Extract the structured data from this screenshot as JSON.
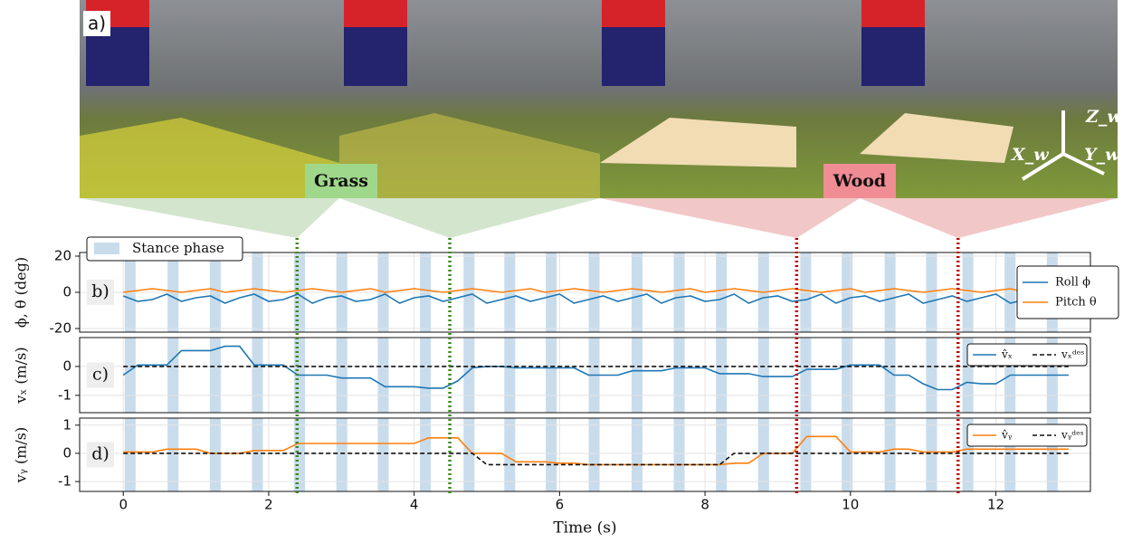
{
  "figure": {
    "panel_label": "a)",
    "grass": "Grass",
    "wood": "Wood",
    "axes": [
      "Z_w",
      "X_w",
      "Y_w"
    ]
  },
  "stance": {
    "name": "Stance phase",
    "color": "#c9dcec",
    "intervals": [
      [
        0.02,
        0.17
      ],
      [
        0.61,
        0.76
      ],
      [
        1.19,
        1.34
      ],
      [
        1.77,
        1.92
      ],
      [
        2.35,
        2.5
      ],
      [
        2.93,
        3.08
      ],
      [
        3.5,
        3.65
      ],
      [
        4.08,
        4.23
      ],
      [
        4.68,
        4.83
      ],
      [
        5.24,
        5.39
      ],
      [
        5.81,
        5.96
      ],
      [
        6.4,
        6.55
      ],
      [
        6.99,
        7.14
      ],
      [
        7.57,
        7.72
      ],
      [
        8.15,
        8.3
      ],
      [
        8.73,
        8.88
      ],
      [
        9.31,
        9.46
      ],
      [
        9.88,
        10.03
      ],
      [
        10.47,
        10.62
      ],
      [
        11.04,
        11.19
      ],
      [
        11.54,
        11.69
      ],
      [
        12.12,
        12.27
      ],
      [
        12.7,
        12.85
      ]
    ]
  },
  "events": [
    {
      "x": 2.39,
      "color": "#3a8a1e"
    },
    {
      "x": 4.49,
      "color": "#3a8a1e"
    },
    {
      "x": 9.26,
      "color": "#c00000"
    },
    {
      "x": 11.48,
      "color": "#c00000"
    }
  ],
  "chart_data": [
    {
      "type": "line",
      "annotation": "b)",
      "ylabel": "ϕ, θ (deg)",
      "xlim": [
        -0.6,
        13.3
      ],
      "ylim": [
        -22,
        22
      ],
      "yticks": [
        -20,
        0,
        20
      ],
      "grid": true,
      "legend": "center right",
      "x": [
        0,
        0.2,
        0.4,
        0.6,
        0.8,
        1,
        1.2,
        1.4,
        1.6,
        1.8,
        2,
        2.2,
        2.4,
        2.6,
        2.8,
        3,
        3.2,
        3.4,
        3.6,
        3.8,
        4,
        4.2,
        4.4,
        4.6,
        4.8,
        5,
        5.2,
        5.4,
        5.6,
        5.8,
        6,
        6.2,
        6.4,
        6.6,
        6.8,
        7,
        7.2,
        7.4,
        7.6,
        7.8,
        8,
        8.2,
        8.4,
        8.6,
        8.8,
        9,
        9.2,
        9.4,
        9.6,
        9.8,
        10,
        10.2,
        10.4,
        10.6,
        10.8,
        11,
        11.2,
        11.4,
        11.6,
        11.8,
        12,
        12.2,
        12.4,
        12.6,
        12.8,
        13
      ],
      "series": [
        {
          "name": "Roll ϕ",
          "color": "#1f77b4",
          "values": [
            -2,
            -5,
            -4,
            -1,
            -5,
            -3,
            -2,
            -6,
            -3,
            -1,
            -5,
            -4,
            -1,
            -6,
            -3,
            -2,
            -5,
            -4,
            -1,
            -6,
            -3,
            -2,
            -5,
            -3,
            -1,
            -6,
            -4,
            -2,
            -5,
            -3,
            -1,
            -6,
            -4,
            -2,
            -5,
            -3,
            -1,
            -6,
            -3,
            -2,
            -5,
            -4,
            -1,
            -6,
            -3,
            -2,
            -5,
            -4,
            -1,
            -6,
            -3,
            -2,
            -5,
            -3,
            -1,
            -6,
            -4,
            -2,
            -5,
            -3,
            -1,
            -6,
            -4,
            -2,
            -5,
            -3
          ]
        },
        {
          "name": "Pitch θ",
          "color": "#ff7f0e",
          "values": [
            0,
            1,
            2,
            1,
            0,
            1,
            2,
            0,
            1,
            2,
            1,
            0,
            1,
            2,
            1,
            0,
            1,
            2,
            0,
            1,
            2,
            1,
            0,
            1,
            2,
            1,
            0,
            1,
            2,
            0,
            1,
            2,
            1,
            0,
            1,
            2,
            1,
            0,
            1,
            2,
            0,
            1,
            2,
            1,
            0,
            1,
            2,
            1,
            0,
            1,
            2,
            0,
            1,
            2,
            1,
            0,
            1,
            2,
            1,
            0,
            1,
            2,
            0,
            1,
            2,
            1
          ]
        }
      ]
    },
    {
      "type": "line",
      "annotation": "c)",
      "ylabel": "vₓ (m/s)",
      "xlim": [
        -0.6,
        13.3
      ],
      "ylim": [
        -1.6,
        1.0
      ],
      "yticks": [
        -1,
        0
      ],
      "grid": true,
      "legend": "upper right",
      "x": [
        0,
        0.2,
        0.4,
        0.6,
        0.8,
        1,
        1.2,
        1.4,
        1.6,
        1.8,
        2,
        2.2,
        2.4,
        2.6,
        2.8,
        3,
        3.2,
        3.4,
        3.6,
        3.8,
        4,
        4.2,
        4.4,
        4.6,
        4.8,
        5,
        5.2,
        5.4,
        5.6,
        5.8,
        6,
        6.2,
        6.4,
        6.6,
        6.8,
        7,
        7.2,
        7.4,
        7.6,
        7.8,
        8,
        8.2,
        8.4,
        8.6,
        8.8,
        9,
        9.2,
        9.4,
        9.6,
        9.8,
        10,
        10.2,
        10.4,
        10.6,
        10.8,
        11,
        11.2,
        11.4,
        11.6,
        11.8,
        12,
        12.2,
        12.4,
        12.6,
        12.8,
        13
      ],
      "series": [
        {
          "name": "v̂ₓ",
          "color": "#1f77b4",
          "values": [
            -0.3,
            0.05,
            0.05,
            0.05,
            0.55,
            0.55,
            0.55,
            0.7,
            0.7,
            0.05,
            0.05,
            0.05,
            -0.3,
            -0.3,
            -0.3,
            -0.4,
            -0.4,
            -0.4,
            -0.7,
            -0.7,
            -0.7,
            -0.75,
            -0.75,
            -0.5,
            -0.05,
            0,
            0,
            -0.05,
            -0.05,
            -0.05,
            -0.05,
            -0.05,
            -0.3,
            -0.3,
            -0.3,
            -0.15,
            -0.15,
            -0.15,
            -0.05,
            -0.05,
            -0.05,
            -0.25,
            -0.25,
            -0.25,
            -0.35,
            -0.35,
            -0.35,
            -0.1,
            -0.1,
            -0.1,
            0.05,
            0.05,
            0.05,
            -0.3,
            -0.3,
            -0.6,
            -0.8,
            -0.8,
            -0.55,
            -0.6,
            -0.6,
            -0.3,
            -0.3,
            -0.3,
            -0.3,
            -0.3
          ]
        },
        {
          "name": "vₓᵈᵉˢ",
          "color": "#111111",
          "dash": true,
          "values": [
            0,
            0,
            0,
            0,
            0,
            0,
            0,
            0,
            0,
            0,
            0,
            0,
            0,
            0,
            0,
            0,
            0,
            0,
            0,
            0,
            0,
            0,
            0,
            0,
            0,
            0,
            0,
            0,
            0,
            0,
            0,
            0,
            0,
            0,
            0,
            0,
            0,
            0,
            0,
            0,
            0,
            0,
            0,
            0,
            0,
            0,
            0,
            0,
            0,
            0,
            0,
            0,
            0,
            0,
            0,
            0,
            0,
            0,
            0,
            0,
            0,
            0,
            0,
            0,
            0,
            0
          ]
        }
      ]
    },
    {
      "type": "line",
      "annotation": "d)",
      "ylabel": "vᵧ (m/s)",
      "xlabel": "Time (s)",
      "xlim": [
        -0.6,
        13.3
      ],
      "ylim": [
        -1.35,
        1.25
      ],
      "yticks": [
        -1,
        0,
        1
      ],
      "xticks": [
        0,
        2,
        4,
        6,
        8,
        10,
        12
      ],
      "grid": true,
      "legend": "upper right",
      "x": [
        0,
        0.2,
        0.4,
        0.6,
        0.8,
        1,
        1.2,
        1.4,
        1.6,
        1.8,
        2,
        2.2,
        2.4,
        2.6,
        2.8,
        3,
        3.2,
        3.4,
        3.6,
        3.8,
        4,
        4.2,
        4.4,
        4.6,
        4.8,
        5,
        5.2,
        5.4,
        5.6,
        5.8,
        6,
        6.2,
        6.4,
        6.6,
        6.8,
        7,
        7.2,
        7.4,
        7.6,
        7.8,
        8,
        8.2,
        8.4,
        8.6,
        8.8,
        9,
        9.2,
        9.4,
        9.6,
        9.8,
        10,
        10.2,
        10.4,
        10.6,
        10.8,
        11,
        11.2,
        11.4,
        11.6,
        11.8,
        12,
        12.2,
        12.4,
        12.6,
        12.8,
        13
      ],
      "series": [
        {
          "name": "v̂ᵧ",
          "color": "#ff7f0e",
          "values": [
            0.05,
            0.05,
            0.05,
            0.15,
            0.15,
            0.15,
            0,
            0,
            0,
            0.1,
            0.1,
            0.1,
            0.35,
            0.35,
            0.35,
            0.35,
            0.35,
            0.35,
            0.35,
            0.35,
            0.35,
            0.55,
            0.55,
            0.55,
            0,
            0,
            0,
            -0.3,
            -0.3,
            -0.3,
            -0.35,
            -0.35,
            -0.4,
            -0.4,
            -0.4,
            -0.4,
            -0.4,
            -0.4,
            -0.4,
            -0.4,
            -0.4,
            -0.4,
            -0.35,
            -0.35,
            0,
            0,
            0,
            0.6,
            0.6,
            0.6,
            0.05,
            0.05,
            0.05,
            0.15,
            0.15,
            0.05,
            0.05,
            0.05,
            0.15,
            0.15,
            0.15,
            0.15,
            0.15,
            0.15,
            0.15,
            0.15
          ]
        },
        {
          "name": "vᵧᵈᵉˢ",
          "color": "#111111",
          "dash": true,
          "values": [
            0,
            0,
            0,
            0,
            0,
            0,
            0,
            0,
            0,
            0,
            0,
            0,
            0,
            0,
            0,
            0,
            0,
            0,
            0,
            0,
            0,
            0,
            0,
            0,
            0,
            -0.4,
            -0.4,
            -0.4,
            -0.4,
            -0.4,
            -0.4,
            -0.4,
            -0.4,
            -0.4,
            -0.4,
            -0.4,
            -0.4,
            -0.4,
            -0.4,
            -0.4,
            -0.4,
            -0.4,
            0,
            0,
            0,
            0,
            0,
            0,
            0,
            0,
            0,
            0,
            0,
            0,
            0,
            0,
            0,
            0,
            0,
            0,
            0,
            0,
            0,
            0,
            0,
            0
          ]
        }
      ]
    }
  ]
}
